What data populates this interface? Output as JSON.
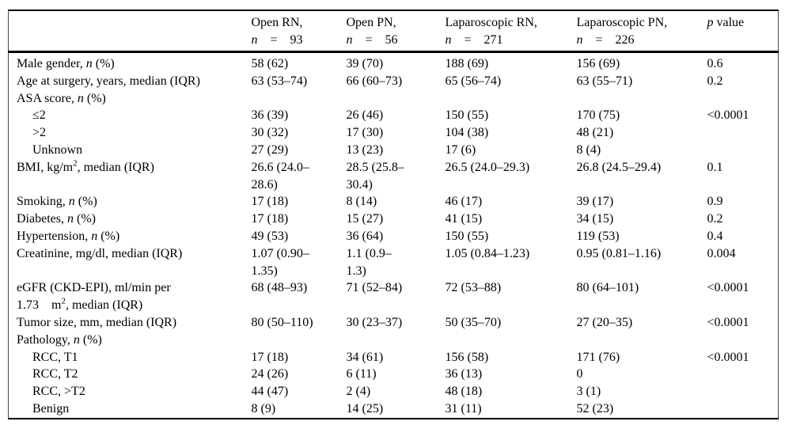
{
  "table": {
    "columns": [
      {
        "name": "characteristic",
        "lines": []
      },
      {
        "name": "open-rn",
        "lines": [
          [
            {
              "t": "Open RN,"
            }
          ],
          [
            {
              "t": "n",
              "i": true
            },
            {
              "t": "  =  93"
            }
          ]
        ]
      },
      {
        "name": "open-pn",
        "lines": [
          [
            {
              "t": "Open PN,"
            }
          ],
          [
            {
              "t": "n",
              "i": true
            },
            {
              "t": "  =  56"
            }
          ]
        ]
      },
      {
        "name": "laparoscopic-rn",
        "lines": [
          [
            {
              "t": "Laparoscopic RN,"
            }
          ],
          [
            {
              "t": "n",
              "i": true
            },
            {
              "t": "  =  271"
            }
          ]
        ]
      },
      {
        "name": "laparoscopic-pn",
        "lines": [
          [
            {
              "t": "Laparoscopic PN,"
            }
          ],
          [
            {
              "t": "n",
              "i": true
            },
            {
              "t": "  =  226"
            }
          ]
        ]
      },
      {
        "name": "p-value",
        "lines": [
          [
            {
              "t": "p",
              "i": true
            },
            {
              "t": " value"
            }
          ]
        ]
      }
    ],
    "rows": [
      {
        "indent": 0,
        "label": [
          {
            "t": "Male gender, "
          },
          {
            "t": "n",
            "i": true
          },
          {
            "t": " (%)"
          }
        ],
        "cells": [
          "58 (62)",
          "39 (70)",
          "188 (69)",
          "156 (69)",
          "0.6"
        ]
      },
      {
        "indent": 0,
        "label": [
          {
            "t": "Age at surgery, years, median (IQR)"
          }
        ],
        "cells": [
          "63 (53–74)",
          "66 (60–73)",
          "65 (56–74)",
          "63 (55–71)",
          "0.2"
        ]
      },
      {
        "indent": 0,
        "label": [
          {
            "t": "ASA score, "
          },
          {
            "t": "n",
            "i": true
          },
          {
            "t": " (%)"
          }
        ],
        "cells": [
          "",
          "",
          "",
          "",
          ""
        ]
      },
      {
        "indent": 1,
        "label": [
          {
            "t": "≤2"
          }
        ],
        "cells": [
          "36 (39)",
          "26 (46)",
          "150 (55)",
          "170 (75)",
          "<0.0001"
        ]
      },
      {
        "indent": 1,
        "label": [
          {
            "t": ">2"
          }
        ],
        "cells": [
          "30 (32)",
          "17 (30)",
          "104 (38)",
          "48 (21)",
          ""
        ]
      },
      {
        "indent": 1,
        "label": [
          {
            "t": "Unknown"
          }
        ],
        "cells": [
          "27 (29)",
          "13 (23)",
          "17 (6)",
          "8 (4)",
          ""
        ]
      },
      {
        "indent": 0,
        "label": [
          {
            "t": "BMI, kg/m"
          },
          {
            "t": "2",
            "sup": true
          },
          {
            "t": ", median (IQR)"
          }
        ],
        "cells": [
          "26.6 (24.0–\n28.6)",
          "28.5 (25.8–\n30.4)",
          "26.5 (24.0–29.3)",
          "26.8 (24.5–29.4)",
          "0.1"
        ]
      },
      {
        "indent": 0,
        "label": [
          {
            "t": "Smoking, "
          },
          {
            "t": "n",
            "i": true
          },
          {
            "t": " (%)"
          }
        ],
        "cells": [
          "17 (18)",
          "8 (14)",
          "46 (17)",
          "39 (17)",
          "0.9"
        ]
      },
      {
        "indent": 0,
        "label": [
          {
            "t": "Diabetes, "
          },
          {
            "t": "n",
            "i": true
          },
          {
            "t": " (%)"
          }
        ],
        "cells": [
          "17 (18)",
          "15 (27)",
          "41 (15)",
          "34 (15)",
          "0.2"
        ]
      },
      {
        "indent": 0,
        "label": [
          {
            "t": "Hypertension, "
          },
          {
            "t": "n",
            "i": true
          },
          {
            "t": " (%)"
          }
        ],
        "cells": [
          "49 (53)",
          "36 (64)",
          "150 (55)",
          "119 (53)",
          "0.4"
        ]
      },
      {
        "indent": 0,
        "label": [
          {
            "t": "Creatinine, mg/dl, median (IQR)"
          }
        ],
        "cells": [
          "1.07 (0.90–\n1.35)",
          "1.1 (0.9–\n1.3)",
          "1.05 (0.84–1.23)",
          "0.95 (0.81–1.16)",
          "0.004"
        ]
      },
      {
        "indent": 0,
        "label": [
          {
            "t": "eGFR (CKD-EPI), ml/min per\n1.73  m"
          },
          {
            "t": "2",
            "sup": true
          },
          {
            "t": ", median (IQR)"
          }
        ],
        "cells": [
          "68 (48–93)",
          "71 (52–84)",
          "72 (53–88)",
          "80 (64–101)",
          "<0.0001"
        ]
      },
      {
        "indent": 0,
        "label": [
          {
            "t": "Tumor size, mm, median (IQR)"
          }
        ],
        "cells": [
          "80 (50–110)",
          "30 (23–37)",
          "50 (35–70)",
          "27 (20–35)",
          "<0.0001"
        ]
      },
      {
        "indent": 0,
        "label": [
          {
            "t": "Pathology, "
          },
          {
            "t": "n",
            "i": true
          },
          {
            "t": " (%)"
          }
        ],
        "cells": [
          "",
          "",
          "",
          "",
          ""
        ]
      },
      {
        "indent": 1,
        "label": [
          {
            "t": "RCC, T1"
          }
        ],
        "cells": [
          "17 (18)",
          "34 (61)",
          "156 (58)",
          "171 (76)",
          "<0.0001"
        ]
      },
      {
        "indent": 1,
        "label": [
          {
            "t": "RCC, T2"
          }
        ],
        "cells": [
          "24 (26)",
          "6 (11)",
          "36 (13)",
          "0",
          ""
        ]
      },
      {
        "indent": 1,
        "label": [
          {
            "t": "RCC, >T2"
          }
        ],
        "cells": [
          "44 (47)",
          "2 (4)",
          "48 (18)",
          "3 (1)",
          ""
        ]
      },
      {
        "indent": 1,
        "label": [
          {
            "t": "Benign"
          }
        ],
        "cells": [
          "8 (9)",
          "14 (25)",
          "31 (11)",
          "52 (23)",
          ""
        ]
      }
    ]
  }
}
